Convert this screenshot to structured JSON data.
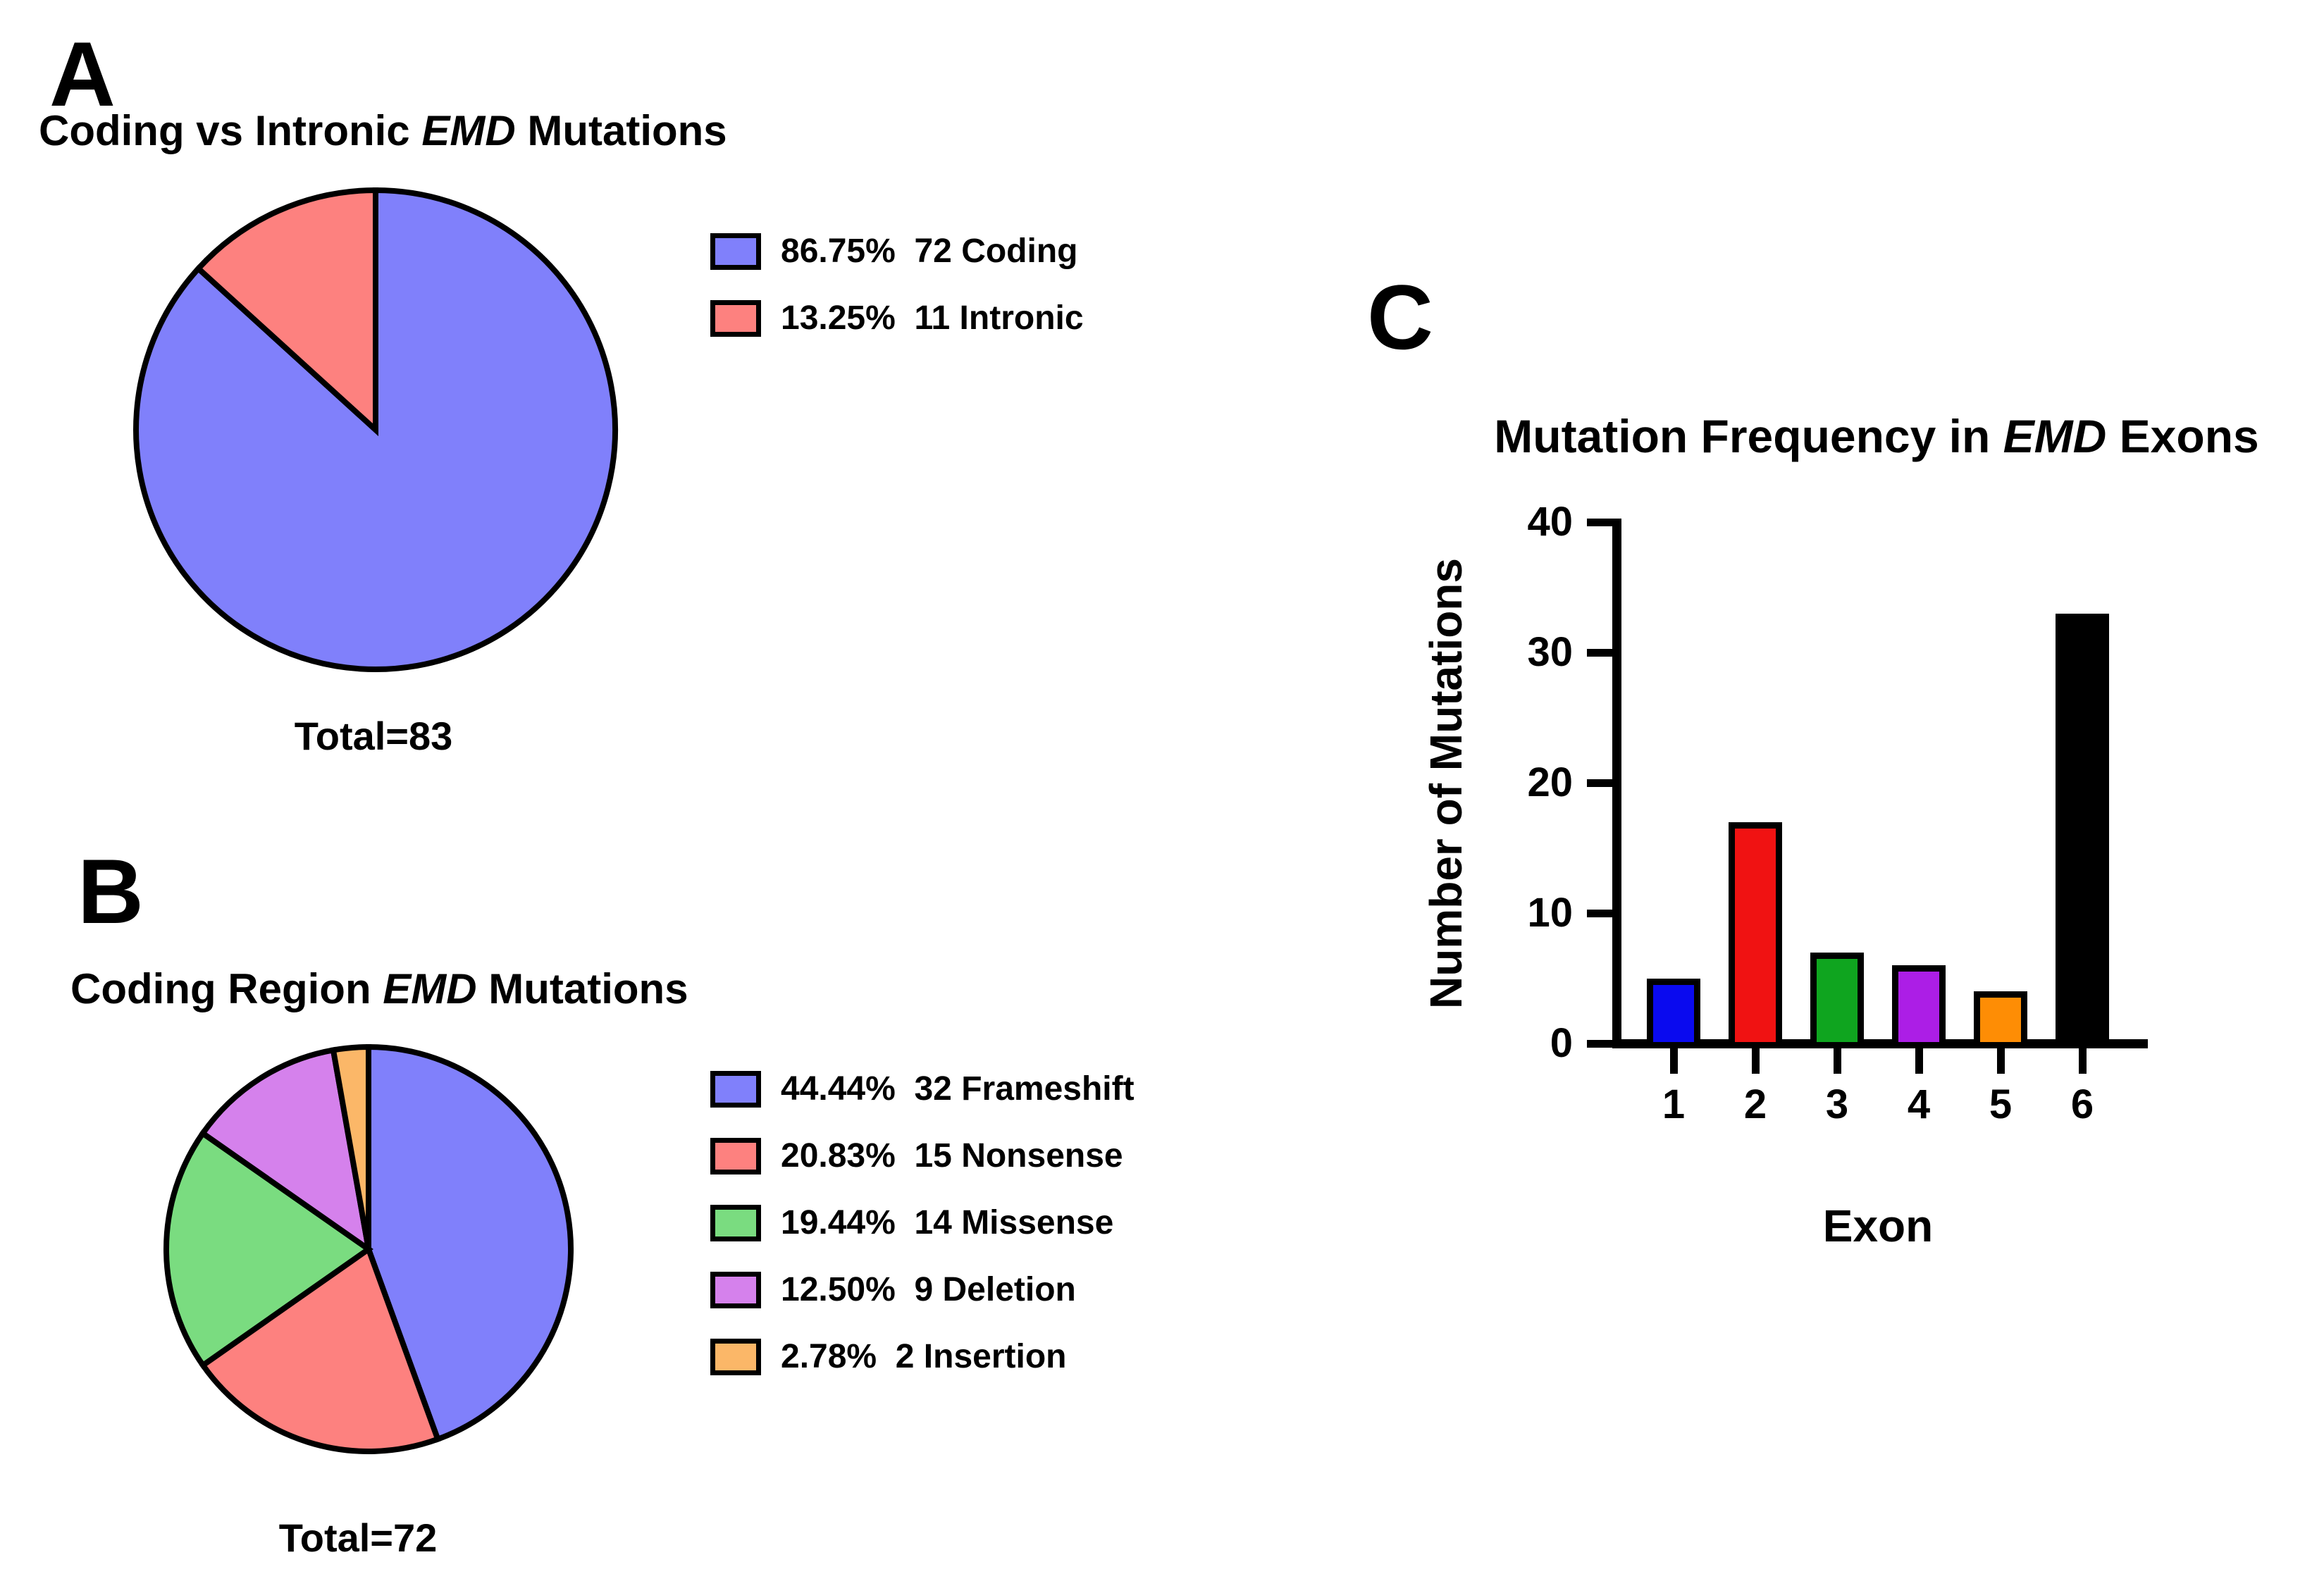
{
  "panels": {
    "a": {
      "label": "A",
      "title": {
        "prefix": "Coding vs Intronic ",
        "emphasis": "EMD",
        "suffix": " Mutations"
      },
      "total": "Total=83"
    },
    "b": {
      "label": "B",
      "title": {
        "prefix": "Coding Region ",
        "emphasis": "EMD",
        "suffix": " Mutations"
      },
      "total": "Total=72"
    },
    "c": {
      "label": "C",
      "title": {
        "prefix": "Mutation Frequency in ",
        "emphasis": "EMD",
        "suffix": " Exons"
      },
      "xlabel": "Exon",
      "ylabel": "Number of Mutations"
    }
  },
  "chart_data": [
    {
      "type": "pie",
      "panel": "A",
      "title": "Coding vs Intronic EMD Mutations",
      "total": 83,
      "total_label": "Total=83",
      "start_angle_deg": 0,
      "direction": "clockwise",
      "legend_position": "right",
      "outline_color": "#000000",
      "slices": [
        {
          "label": "Coding",
          "value": 72,
          "pct": 86.75,
          "color": "#8080FB"
        },
        {
          "label": "Intronic",
          "value": 11,
          "pct": 13.25,
          "color": "#FD817F"
        }
      ]
    },
    {
      "type": "pie",
      "panel": "B",
      "title": "Coding Region EMD Mutations",
      "total": 72,
      "total_label": "Total=72",
      "start_angle_deg": 0,
      "direction": "clockwise",
      "legend_position": "right",
      "outline_color": "#000000",
      "slices": [
        {
          "label": "Frameshift",
          "value": 32,
          "pct": 44.44,
          "color": "#8080FB"
        },
        {
          "label": "Nonsense",
          "value": 15,
          "pct": 20.83,
          "color": "#FD817F"
        },
        {
          "label": "Missense",
          "value": 14,
          "pct": 19.44,
          "color": "#7ADC80"
        },
        {
          "label": "Deletion",
          "value": 9,
          "pct": 12.5,
          "color": "#D581EC"
        },
        {
          "label": "Insertion",
          "value": 2,
          "pct": 2.78,
          "color": "#FBB768"
        }
      ]
    },
    {
      "type": "bar",
      "panel": "C",
      "title": "Mutation Frequency in EMD Exons",
      "xlabel": "Exon",
      "ylabel": "Number of Mutations",
      "categories": [
        "1",
        "2",
        "3",
        "4",
        "5",
        "6"
      ],
      "values": [
        5,
        17,
        7,
        6,
        4,
        33
      ],
      "colors": [
        "#0A0AEF",
        "#F01212",
        "#0FA51F",
        "#AC1EE6",
        "#FE8D05",
        "#000000"
      ],
      "ylim": [
        0,
        40
      ],
      "yticks": [
        0,
        10,
        20,
        30,
        40
      ],
      "grid": false,
      "bar_outline": "#000000"
    }
  ]
}
